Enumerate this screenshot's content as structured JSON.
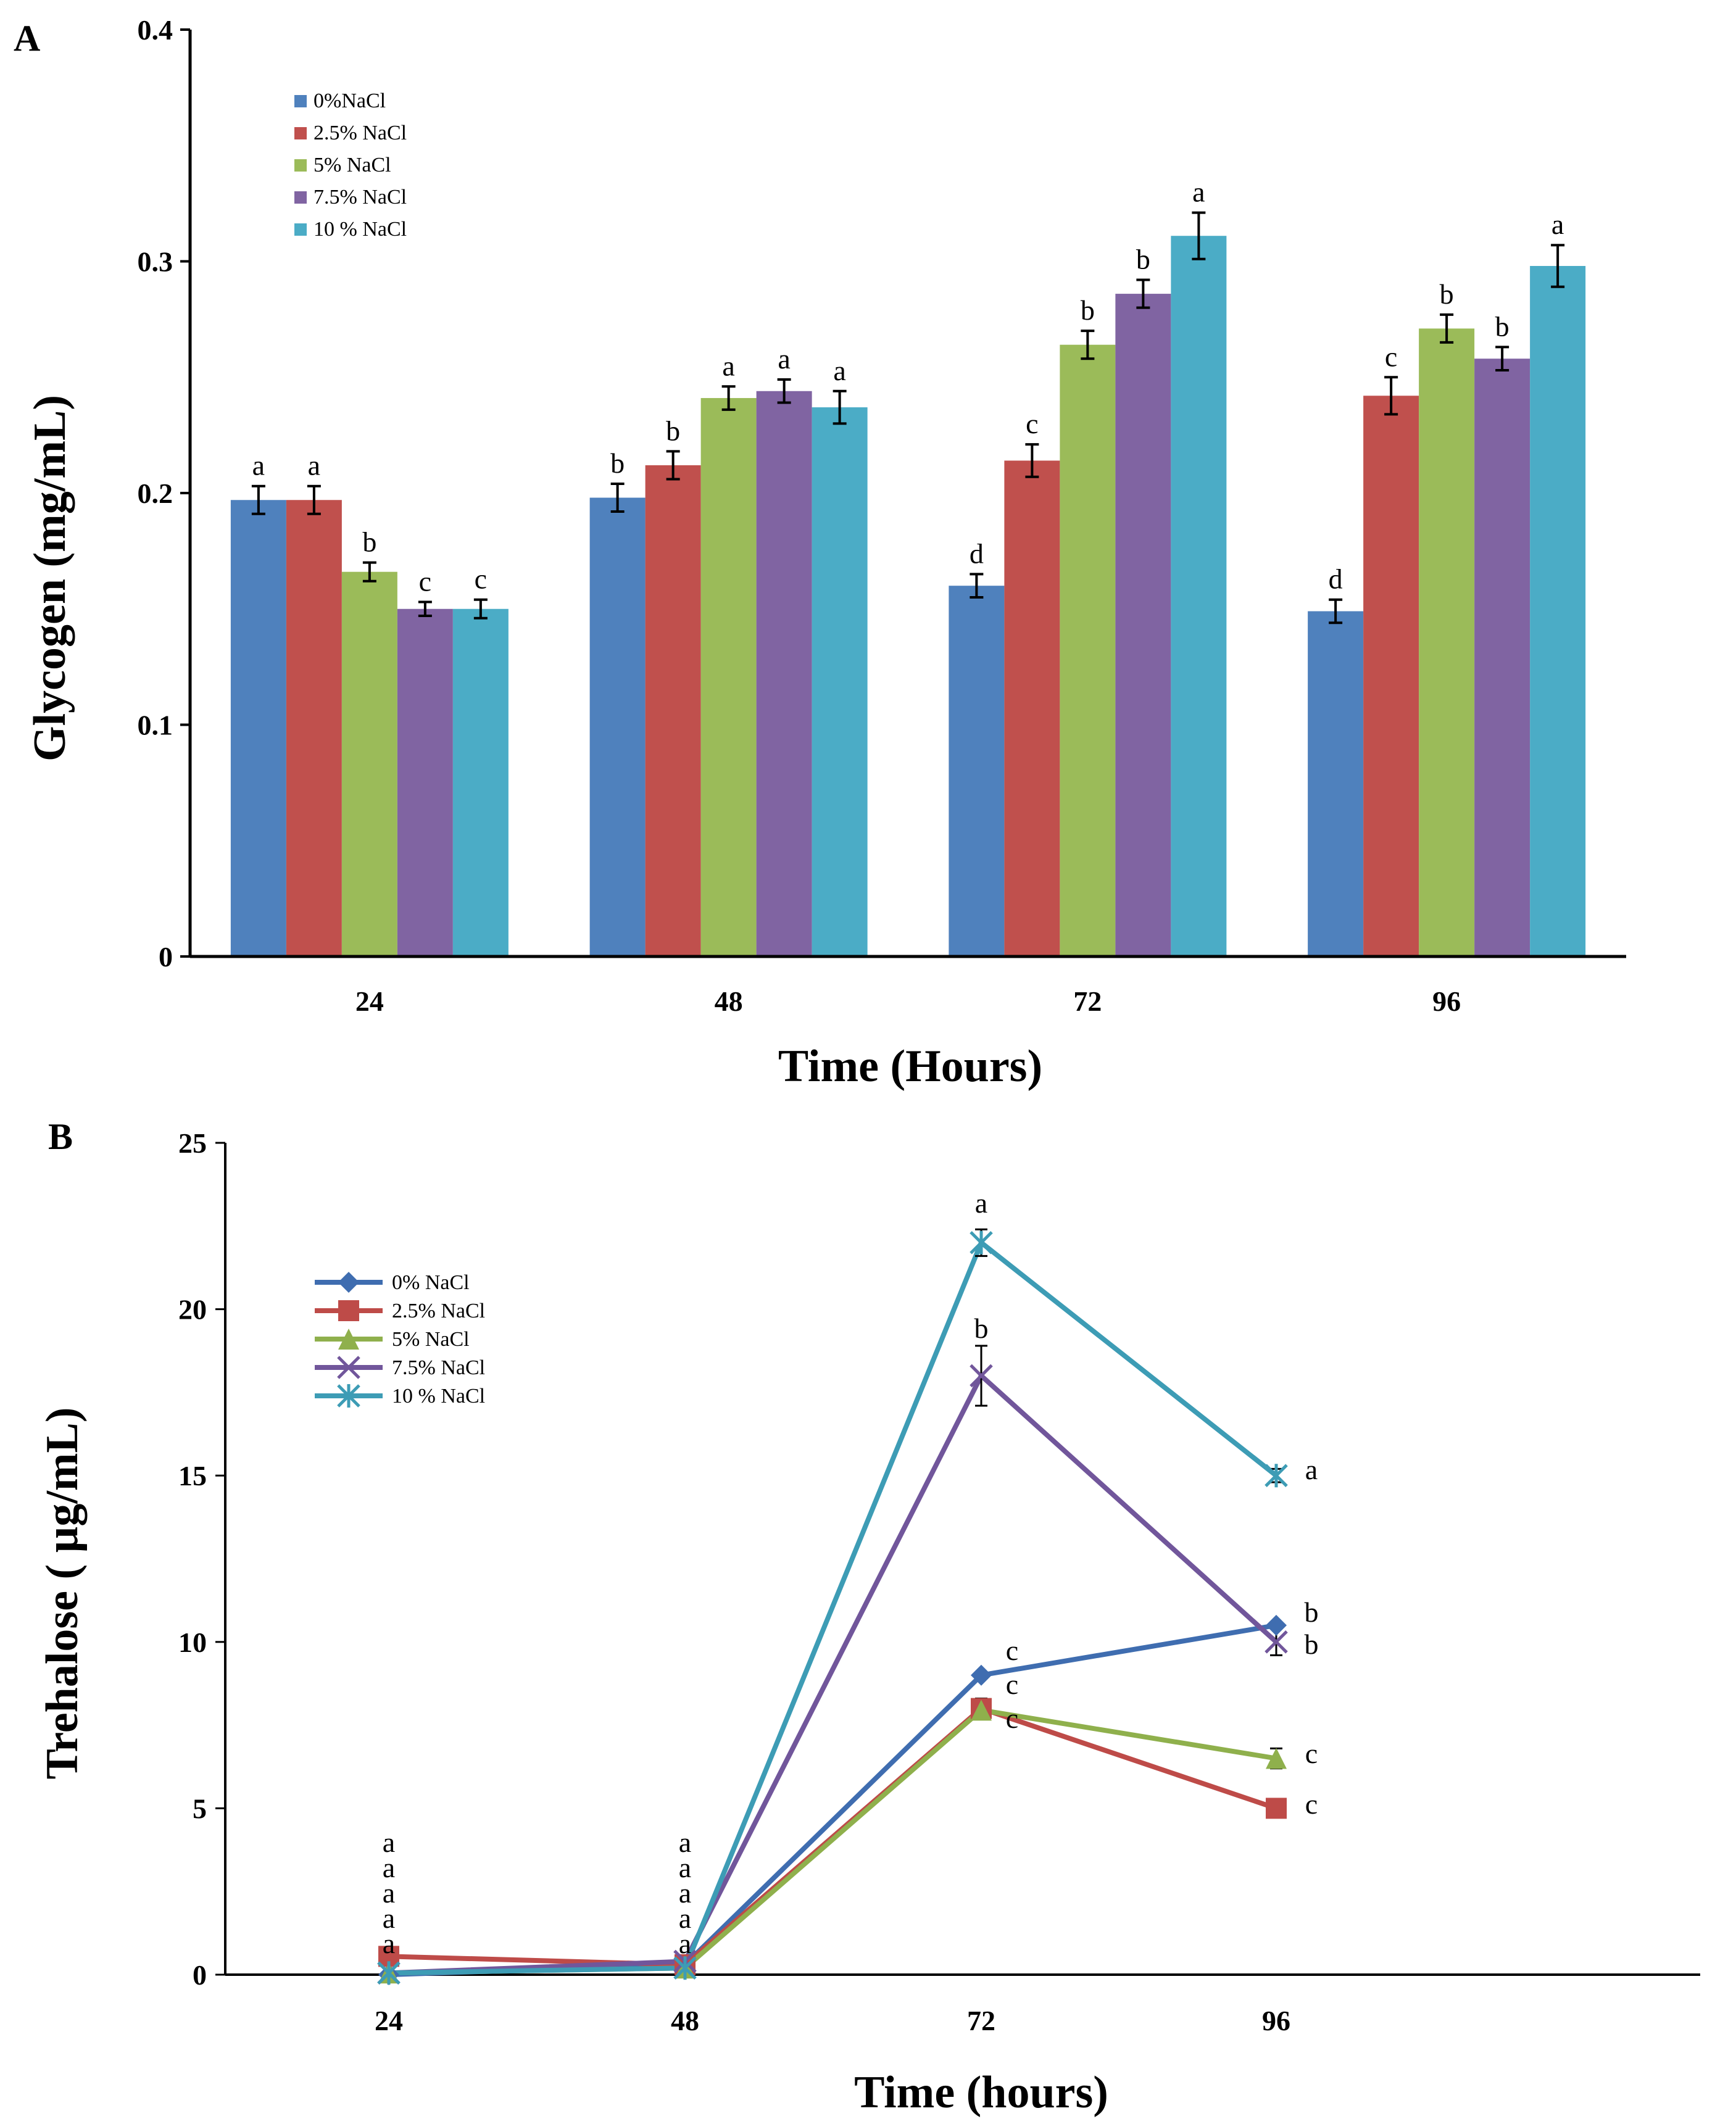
{
  "chart_data": [
    {
      "type": "bar",
      "panel_label": "A",
      "xlabel": "Time (Hours)",
      "ylabel": "Glycogen (mg/mL)",
      "ylim": [
        0,
        0.4
      ],
      "yticks": [
        "0",
        "0.1",
        "0.2",
        "0.3",
        "0.4"
      ],
      "categories": [
        "24",
        "48",
        "72",
        "96"
      ],
      "legend_position": "top-left",
      "series": [
        {
          "name": "0%NaCl",
          "color": "#4f81bd",
          "values": [
            0.197,
            0.198,
            0.16,
            0.149
          ],
          "errors": [
            0.006,
            0.006,
            0.005,
            0.005
          ],
          "letters": [
            "a",
            "b",
            "d",
            "d"
          ]
        },
        {
          "name": "2.5% NaCl",
          "color": "#c0504d",
          "values": [
            0.197,
            0.212,
            0.214,
            0.242
          ],
          "errors": [
            0.006,
            0.006,
            0.007,
            0.008
          ],
          "letters": [
            "a",
            "b",
            "c",
            "c"
          ]
        },
        {
          "name": "5% NaCl",
          "color": "#9bbb59",
          "values": [
            0.166,
            0.241,
            0.264,
            0.271
          ],
          "errors": [
            0.004,
            0.005,
            0.006,
            0.006
          ],
          "letters": [
            "b",
            "a",
            "b",
            "b"
          ]
        },
        {
          "name": "7.5% NaCl",
          "color": "#8064a2",
          "values": [
            0.15,
            0.244,
            0.286,
            0.258
          ],
          "errors": [
            0.003,
            0.005,
            0.006,
            0.005
          ],
          "letters": [
            "c",
            "a",
            "b",
            "b"
          ]
        },
        {
          "name": "10 % NaCl",
          "color": "#4bacc6",
          "values": [
            0.15,
            0.237,
            0.311,
            0.298
          ],
          "errors": [
            0.004,
            0.007,
            0.01,
            0.009
          ],
          "letters": [
            "c",
            "a",
            "a",
            "a"
          ]
        }
      ]
    },
    {
      "type": "line",
      "panel_label": "B",
      "xlabel": "Time (hours)",
      "ylabel": "Trehalose ( µg/mL)",
      "ylim": [
        0,
        25
      ],
      "yticks": [
        "0",
        "5",
        "10",
        "15",
        "20",
        "25"
      ],
      "categories": [
        "24",
        "48",
        "72",
        "96"
      ],
      "legend_position": "top-left",
      "series": [
        {
          "name": "0% NaCl",
          "color": "#3f6db0",
          "marker": "diamond",
          "values": [
            0.0,
            0.3,
            9.0,
            10.5
          ],
          "errors": [
            0,
            0,
            0,
            0
          ],
          "letters": [
            "a",
            "a",
            "c",
            "b"
          ]
        },
        {
          "name": "2.5% NaCl",
          "color": "#be4b48",
          "marker": "square",
          "values": [
            0.55,
            0.3,
            8.0,
            5.0
          ],
          "errors": [
            0,
            0,
            0.3,
            0
          ],
          "letters": [
            "a",
            "a",
            "c",
            "c"
          ]
        },
        {
          "name": "5% NaCl",
          "color": "#8fb04c",
          "marker": "triangle",
          "values": [
            0.05,
            0.2,
            7.95,
            6.5
          ],
          "errors": [
            0,
            0,
            0.2,
            0.3
          ],
          "letters": [
            "a",
            "a",
            "c",
            "c"
          ]
        },
        {
          "name": "7.5% NaCl",
          "color": "#71569b",
          "marker": "x",
          "values": [
            0.05,
            0.4,
            18.0,
            10.0
          ],
          "errors": [
            0,
            0,
            0.9,
            0.4
          ],
          "letters": [
            "a",
            "a",
            "b",
            "b"
          ]
        },
        {
          "name": "10 % NaCl",
          "color": "#3d9cb5",
          "marker": "star",
          "values": [
            0.05,
            0.2,
            22.0,
            15.0
          ],
          "errors": [
            0,
            0,
            0.4,
            0.2
          ],
          "letters": [
            "a",
            "a",
            "a",
            "a"
          ]
        }
      ]
    }
  ]
}
